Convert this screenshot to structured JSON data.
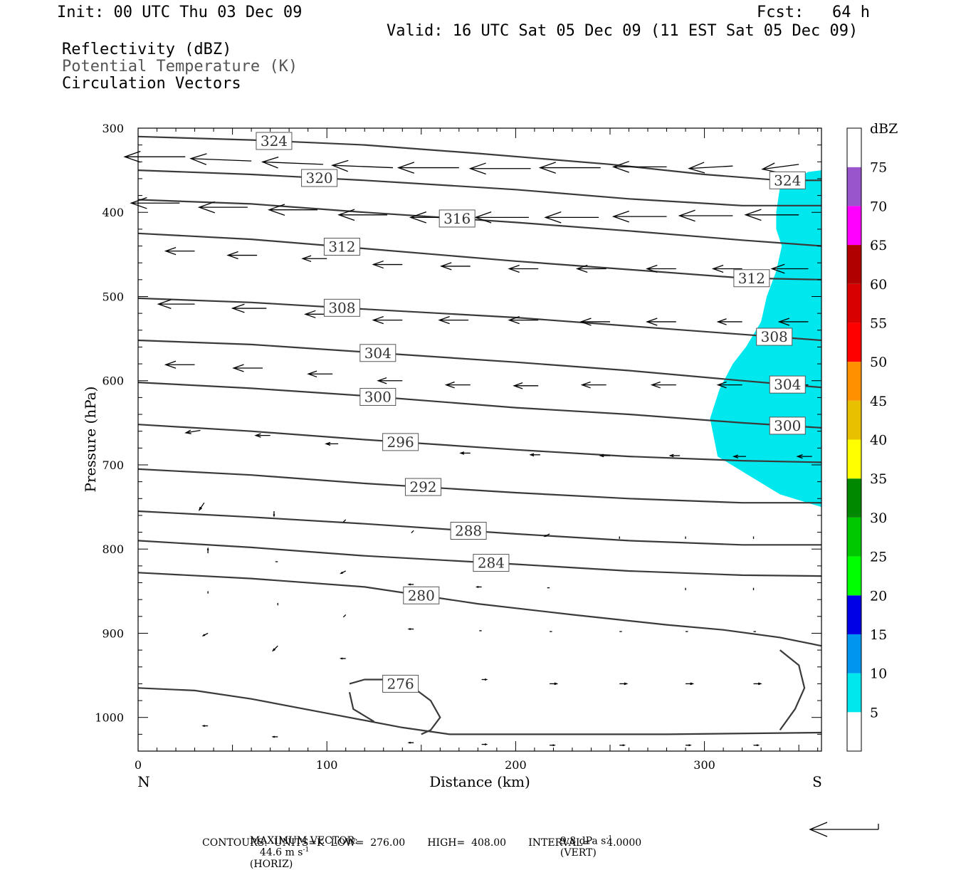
{
  "header": {
    "init": "Init: 00 UTC Thu 03 Dec 09",
    "fcst": "Fcst:   64 h",
    "valid": "Valid: 16 UTC Sat 05 Dec 09 (11 EST Sat 05 Dec 09)",
    "fields": [
      "Reflectivity (dBZ)",
      "Potential Temperature (K)",
      "Circulation Vectors"
    ]
  },
  "footer": {
    "max_vector_label": "MAXIMUM VECTOR:",
    "max_vector_horiz": "44.6 m s",
    "max_vector_horiz_unit": "(HORIZ)",
    "max_vector_vert": "9.8 dPa s",
    "max_vector_vert_unit": "(VERT)",
    "exponent": "-1",
    "contours": "CONTOURS:  UNITS=K  LOW=  276.00       HIGH=  408.00       INTERVAL=     4.0000"
  },
  "chart_data": {
    "type": "cross-section",
    "xlabel": "Distance (km)",
    "ylabel": "Pressure (hPa)",
    "xlim": [
      0,
      362
    ],
    "ylim": [
      1040,
      300
    ],
    "x_ticks": [
      0,
      100,
      200,
      300
    ],
    "y_ticks": [
      300,
      400,
      500,
      600,
      700,
      800,
      900,
      1000
    ],
    "x_end_labels": {
      "left": "N",
      "right": "S"
    },
    "colorbar": {
      "title": "dBZ",
      "levels": [
        5,
        10,
        15,
        20,
        25,
        30,
        35,
        40,
        45,
        50,
        55,
        60,
        65,
        70,
        75
      ],
      "colors": [
        "#ffffff",
        "#00e8ee",
        "#0096f0",
        "#0000e6",
        "#00ff00",
        "#00c800",
        "#008800",
        "#ffff00",
        "#e8c000",
        "#ff9000",
        "#ff0000",
        "#d80000",
        "#b00000",
        "#ff00ff",
        "#9955cc",
        "#ffffff"
      ]
    },
    "reflectivity_area": {
      "color": "#00e8ee",
      "boundary": [
        [
          362,
          350
        ],
        [
          355,
          352
        ],
        [
          340,
          370
        ],
        [
          338,
          400
        ],
        [
          338,
          420
        ],
        [
          341,
          440
        ],
        [
          338,
          470
        ],
        [
          333,
          500
        ],
        [
          330,
          530
        ],
        [
          322,
          560
        ],
        [
          315,
          580
        ],
        [
          308,
          610
        ],
        [
          303,
          645
        ],
        [
          307,
          690
        ],
        [
          340,
          735
        ],
        [
          362,
          750
        ]
      ]
    },
    "theta_contours": [
      {
        "label": "324",
        "pts": [
          [
            0,
            310
          ],
          [
            60,
            314
          ],
          [
            120,
            320
          ],
          [
            180,
            330
          ],
          [
            250,
            343
          ],
          [
            300,
            355
          ],
          [
            340,
            362
          ],
          [
            362,
            362
          ]
        ]
      },
      {
        "label": "320",
        "pts": [
          [
            0,
            350
          ],
          [
            60,
            355
          ],
          [
            120,
            362
          ],
          [
            200,
            373
          ],
          [
            260,
            384
          ],
          [
            320,
            392
          ],
          [
            362,
            392
          ]
        ]
      },
      {
        "label": "316",
        "pts": [
          [
            0,
            385
          ],
          [
            60,
            390
          ],
          [
            120,
            400
          ],
          [
            200,
            412
          ],
          [
            260,
            422
          ],
          [
            320,
            433
          ],
          [
            362,
            440
          ]
        ]
      },
      {
        "label": "312",
        "pts": [
          [
            0,
            425
          ],
          [
            60,
            432
          ],
          [
            120,
            443
          ],
          [
            200,
            458
          ],
          [
            260,
            468
          ],
          [
            320,
            478
          ],
          [
            362,
            480
          ]
        ]
      },
      {
        "label": "308",
        "pts": [
          [
            0,
            502
          ],
          [
            60,
            507
          ],
          [
            120,
            515
          ],
          [
            200,
            525
          ],
          [
            260,
            535
          ],
          [
            320,
            545
          ],
          [
            362,
            552
          ]
        ]
      },
      {
        "label": "304",
        "pts": [
          [
            0,
            552
          ],
          [
            60,
            557
          ],
          [
            120,
            566
          ],
          [
            200,
            578
          ],
          [
            260,
            588
          ],
          [
            320,
            600
          ],
          [
            362,
            608
          ]
        ]
      },
      {
        "label": "300",
        "pts": [
          [
            0,
            602
          ],
          [
            60,
            609
          ],
          [
            120,
            618
          ],
          [
            200,
            632
          ],
          [
            260,
            640
          ],
          [
            320,
            650
          ],
          [
            362,
            656
          ]
        ]
      },
      {
        "label": "296",
        "pts": [
          [
            0,
            652
          ],
          [
            60,
            660
          ],
          [
            120,
            670
          ],
          [
            200,
            682
          ],
          [
            260,
            690
          ],
          [
            320,
            695
          ],
          [
            362,
            697
          ]
        ]
      },
      {
        "label": "292",
        "pts": [
          [
            0,
            705
          ],
          [
            60,
            712
          ],
          [
            120,
            722
          ],
          [
            200,
            733
          ],
          [
            260,
            740
          ],
          [
            320,
            745
          ],
          [
            362,
            745
          ]
        ]
      },
      {
        "label": "288",
        "pts": [
          [
            0,
            755
          ],
          [
            60,
            762
          ],
          [
            120,
            770
          ],
          [
            200,
            782
          ],
          [
            260,
            790
          ],
          [
            320,
            795
          ],
          [
            362,
            795
          ]
        ]
      },
      {
        "label": "284",
        "pts": [
          [
            0,
            790
          ],
          [
            60,
            798
          ],
          [
            120,
            808
          ],
          [
            200,
            818
          ],
          [
            260,
            826
          ],
          [
            320,
            831
          ],
          [
            362,
            832
          ]
        ]
      },
      {
        "label": "280",
        "pts": [
          [
            0,
            828
          ],
          [
            60,
            835
          ],
          [
            120,
            845
          ],
          [
            180,
            865
          ],
          [
            230,
            878
          ],
          [
            280,
            890
          ],
          [
            310,
            896
          ],
          [
            340,
            905
          ],
          [
            362,
            915
          ]
        ]
      },
      {
        "label": "276",
        "pts": [
          [
            112,
            960
          ],
          [
            120,
            955
          ],
          [
            140,
            955
          ],
          [
            155,
            980
          ],
          [
            160,
            1000
          ],
          [
            155,
            1015
          ],
          [
            150,
            1020
          ]
        ]
      }
    ],
    "extra_contours": [
      {
        "label": "",
        "pts": [
          [
            0,
            965
          ],
          [
            30,
            968
          ],
          [
            60,
            978
          ],
          [
            100,
            995
          ],
          [
            140,
            1012
          ],
          [
            165,
            1020
          ],
          [
            210,
            1020
          ],
          [
            280,
            1020
          ],
          [
            362,
            1018
          ]
        ]
      },
      {
        "label": "",
        "pts": [
          [
            340,
            920
          ],
          [
            350,
            938
          ],
          [
            353,
            965
          ],
          [
            348,
            990
          ],
          [
            340,
            1015
          ]
        ]
      },
      {
        "label": "",
        "pts": [
          [
            112,
            970
          ],
          [
            114,
            990
          ],
          [
            125,
            1005
          ]
        ]
      }
    ],
    "vectors": [
      {
        "x": 25,
        "p": 334,
        "dx": -25,
        "dy": 0
      },
      {
        "x": 60,
        "p": 339,
        "dx": -25,
        "dy": -1
      },
      {
        "x": 98,
        "p": 343,
        "dx": -25,
        "dy": -1
      },
      {
        "x": 135,
        "p": 347,
        "dx": -25,
        "dy": -1
      },
      {
        "x": 170,
        "p": 347,
        "dx": -25,
        "dy": 0
      },
      {
        "x": 208,
        "p": 348,
        "dx": -25,
        "dy": 0
      },
      {
        "x": 245,
        "p": 347,
        "dx": -25,
        "dy": 0
      },
      {
        "x": 280,
        "p": 346,
        "dx": -22,
        "dy": 0
      },
      {
        "x": 315,
        "p": 345,
        "dx": -18,
        "dy": 1
      },
      {
        "x": 350,
        "p": 343,
        "dx": -15,
        "dy": 2
      },
      {
        "x": 22,
        "p": 389,
        "dx": -20,
        "dy": 0
      },
      {
        "x": 58,
        "p": 394,
        "dx": -20,
        "dy": 0
      },
      {
        "x": 95,
        "p": 397,
        "dx": -20,
        "dy": 0
      },
      {
        "x": 132,
        "p": 403,
        "dx": -20,
        "dy": 0
      },
      {
        "x": 170,
        "p": 406,
        "dx": -20,
        "dy": 0
      },
      {
        "x": 207,
        "p": 406,
        "dx": -22,
        "dy": 0
      },
      {
        "x": 244,
        "p": 406,
        "dx": -22,
        "dy": 0
      },
      {
        "x": 280,
        "p": 405,
        "dx": -22,
        "dy": 0
      },
      {
        "x": 315,
        "p": 404,
        "dx": -22,
        "dy": 0
      },
      {
        "x": 350,
        "p": 403,
        "dx": -22,
        "dy": 0
      },
      {
        "x": 30,
        "p": 446,
        "dx": -12,
        "dy": 0
      },
      {
        "x": 63,
        "p": 451,
        "dx": -12,
        "dy": 0
      },
      {
        "x": 100,
        "p": 455,
        "dx": -10,
        "dy": 0
      },
      {
        "x": 140,
        "p": 462,
        "dx": -12,
        "dy": 0
      },
      {
        "x": 176,
        "p": 464,
        "dx": -12,
        "dy": 0
      },
      {
        "x": 212,
        "p": 467,
        "dx": -12,
        "dy": 0
      },
      {
        "x": 248,
        "p": 467,
        "dx": -12,
        "dy": 0
      },
      {
        "x": 285,
        "p": 467,
        "dx": -12,
        "dy": 0
      },
      {
        "x": 320,
        "p": 467,
        "dx": -12,
        "dy": 0
      },
      {
        "x": 355,
        "p": 467,
        "dx": -15,
        "dy": 0
      },
      {
        "x": 30,
        "p": 509,
        "dx": -15,
        "dy": 0
      },
      {
        "x": 68,
        "p": 514,
        "dx": -14,
        "dy": 0
      },
      {
        "x": 104,
        "p": 521,
        "dx": -12,
        "dy": 0
      },
      {
        "x": 140,
        "p": 528,
        "dx": -12,
        "dy": 0
      },
      {
        "x": 175,
        "p": 528,
        "dx": -12,
        "dy": 0
      },
      {
        "x": 212,
        "p": 528,
        "dx": -12,
        "dy": 0
      },
      {
        "x": 250,
        "p": 530,
        "dx": -12,
        "dy": 0
      },
      {
        "x": 285,
        "p": 530,
        "dx": -12,
        "dy": 0
      },
      {
        "x": 320,
        "p": 530,
        "dx": -10,
        "dy": 0
      },
      {
        "x": 355,
        "p": 530,
        "dx": -12,
        "dy": 0
      },
      {
        "x": 30,
        "p": 581,
        "dx": -12,
        "dy": 0
      },
      {
        "x": 66,
        "p": 585,
        "dx": -12,
        "dy": 0
      },
      {
        "x": 103,
        "p": 592,
        "dx": -10,
        "dy": 0
      },
      {
        "x": 140,
        "p": 600,
        "dx": -10,
        "dy": 0
      },
      {
        "x": 176,
        "p": 605,
        "dx": -10,
        "dy": 0
      },
      {
        "x": 212,
        "p": 606,
        "dx": -10,
        "dy": 0
      },
      {
        "x": 248,
        "p": 605,
        "dx": -10,
        "dy": 0
      },
      {
        "x": 285,
        "p": 605,
        "dx": -10,
        "dy": 0
      },
      {
        "x": 320,
        "p": 605,
        "dx": -10,
        "dy": 0
      },
      {
        "x": 355,
        "p": 605,
        "dx": -10,
        "dy": 0
      },
      {
        "x": 33,
        "p": 659,
        "dx": -6,
        "dy": 1
      },
      {
        "x": 70,
        "p": 665,
        "dx": -6,
        "dy": 0
      },
      {
        "x": 106,
        "p": 675,
        "dx": -5,
        "dy": 0
      },
      {
        "x": 176,
        "p": 686,
        "dx": -4,
        "dy": 0
      },
      {
        "x": 213,
        "p": 688,
        "dx": -4,
        "dy": 0
      },
      {
        "x": 250,
        "p": 689,
        "dx": -4,
        "dy": 0
      },
      {
        "x": 287,
        "p": 689,
        "dx": -4,
        "dy": 0
      },
      {
        "x": 322,
        "p": 690,
        "dx": -5,
        "dy": 0
      },
      {
        "x": 357,
        "p": 690,
        "dx": -6,
        "dy": 0
      },
      {
        "x": 35,
        "p": 745,
        "dx": -2,
        "dy": 3
      },
      {
        "x": 72,
        "p": 755,
        "dx": 0,
        "dy": 2
      },
      {
        "x": 110,
        "p": 765,
        "dx": -1,
        "dy": 1
      },
      {
        "x": 146,
        "p": 778,
        "dx": -1,
        "dy": 1
      },
      {
        "x": 218,
        "p": 782,
        "dx": -2,
        "dy": 1
      },
      {
        "x": 255,
        "p": 785,
        "dx": 0,
        "dy": 1
      },
      {
        "x": 290,
        "p": 785,
        "dx": 0,
        "dy": 1
      },
      {
        "x": 326,
        "p": 785,
        "dx": 0,
        "dy": 1
      },
      {
        "x": 37,
        "p": 805,
        "dx": 0,
        "dy": -2
      },
      {
        "x": 74,
        "p": 815,
        "dx": -1,
        "dy": 0
      },
      {
        "x": 110,
        "p": 826,
        "dx": -2,
        "dy": 1
      },
      {
        "x": 146,
        "p": 842,
        "dx": -2,
        "dy": 0
      },
      {
        "x": 182,
        "p": 845,
        "dx": -2,
        "dy": 0
      },
      {
        "x": 218,
        "p": 846,
        "dx": -1,
        "dy": 0
      },
      {
        "x": 290,
        "p": 846,
        "dx": 0,
        "dy": 1
      },
      {
        "x": 326,
        "p": 846,
        "dx": 0,
        "dy": 1
      },
      {
        "x": 37,
        "p": 850,
        "dx": 0,
        "dy": 1
      },
      {
        "x": 74,
        "p": 864,
        "dx": 0,
        "dy": 1
      },
      {
        "x": 110,
        "p": 878,
        "dx": -1,
        "dy": 1
      },
      {
        "x": 37,
        "p": 900,
        "dx": -2,
        "dy": 1
      },
      {
        "x": 74,
        "p": 915,
        "dx": -2,
        "dy": 2
      },
      {
        "x": 110,
        "p": 930,
        "dx": -2,
        "dy": 0
      },
      {
        "x": 146,
        "p": 895,
        "dx": -2,
        "dy": 0
      },
      {
        "x": 182,
        "p": 897,
        "dx": -1,
        "dy": 0
      },
      {
        "x": 218,
        "p": 898,
        "dx": 1,
        "dy": 0
      },
      {
        "x": 255,
        "p": 898,
        "dx": 1,
        "dy": 0
      },
      {
        "x": 290,
        "p": 898,
        "dx": 1,
        "dy": 0
      },
      {
        "x": 326,
        "p": 898,
        "dx": 1,
        "dy": 0
      },
      {
        "x": 182,
        "p": 955,
        "dx": 2,
        "dy": 0
      },
      {
        "x": 218,
        "p": 960,
        "dx": 3,
        "dy": 0
      },
      {
        "x": 255,
        "p": 960,
        "dx": 3,
        "dy": 0
      },
      {
        "x": 290,
        "p": 960,
        "dx": 3,
        "dy": 0
      },
      {
        "x": 326,
        "p": 960,
        "dx": 3,
        "dy": 0
      },
      {
        "x": 37,
        "p": 1010,
        "dx": -2,
        "dy": 0
      },
      {
        "x": 74,
        "p": 1023,
        "dx": -2,
        "dy": 0
      },
      {
        "x": 146,
        "p": 1030,
        "dx": -2,
        "dy": 0
      },
      {
        "x": 182,
        "p": 1032,
        "dx": 2,
        "dy": 0
      },
      {
        "x": 218,
        "p": 1033,
        "dx": 2,
        "dy": 0
      },
      {
        "x": 255,
        "p": 1033,
        "dx": 2,
        "dy": 0
      },
      {
        "x": 290,
        "p": 1033,
        "dx": 2,
        "dy": 0
      },
      {
        "x": 326,
        "p": 1033,
        "dx": 2,
        "dy": 0
      }
    ]
  }
}
